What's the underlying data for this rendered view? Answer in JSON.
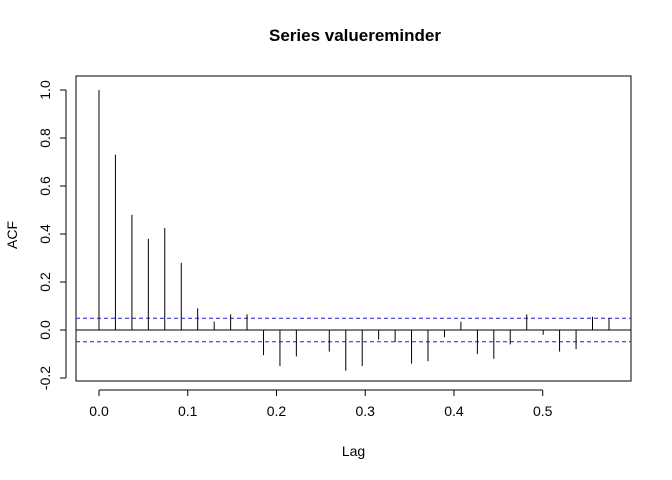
{
  "chart_data": {
    "type": "bar",
    "title": "Series  valuereminder",
    "xlabel": "Lag",
    "ylabel": "ACF",
    "xlim": [
      -0.0264,
      0.5984
    ],
    "ylim": [
      -0.2,
      1.0
    ],
    "x_ticks": [
      0.0,
      0.1,
      0.2,
      0.3,
      0.4,
      0.5
    ],
    "x_tick_labels": [
      "0.0",
      "0.1",
      "0.2",
      "0.3",
      "0.4",
      "0.5"
    ],
    "y_ticks": [
      -0.2,
      0.0,
      0.2,
      0.4,
      0.6,
      0.8,
      1.0
    ],
    "y_tick_labels": [
      "-0.2",
      "0.0",
      "0.2",
      "0.4",
      "0.6",
      "0.8",
      "1.0"
    ],
    "confidence_band": 0.049,
    "grid": false,
    "series": [
      {
        "lag": [
          0.0,
          0.0185,
          0.0371,
          0.0556,
          0.0741,
          0.0927,
          0.1112,
          0.1298,
          0.1483,
          0.1668,
          0.1854,
          0.2039,
          0.2224,
          0.241,
          0.2595,
          0.2781,
          0.2966,
          0.3151,
          0.3337,
          0.3522,
          0.3707,
          0.3893,
          0.4078,
          0.4264,
          0.4449,
          0.4634,
          0.482,
          0.5005,
          0.519,
          0.5376,
          0.5561,
          0.5747
        ],
        "acf": [
          1.0,
          0.73,
          0.48,
          0.38,
          0.425,
          0.28,
          0.09,
          0.035,
          0.065,
          0.065,
          -0.105,
          -0.15,
          -0.11,
          0.0,
          -0.09,
          -0.17,
          -0.15,
          -0.04,
          -0.05,
          -0.14,
          -0.13,
          -0.03,
          0.035,
          -0.1,
          -0.12,
          -0.06,
          0.065,
          -0.02,
          -0.09,
          -0.08,
          0.055,
          0.05
        ]
      }
    ]
  }
}
